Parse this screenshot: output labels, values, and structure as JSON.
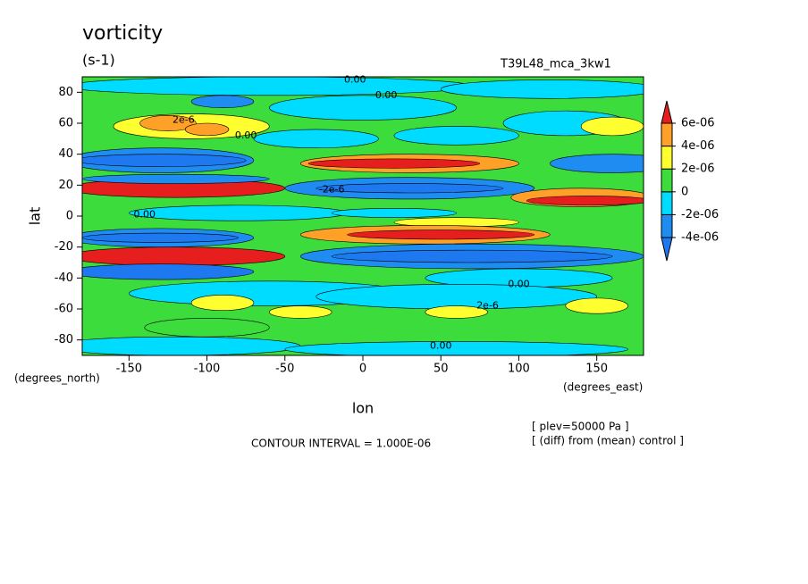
{
  "chart_data": {
    "type": "contour-map",
    "title": "vorticity",
    "units": "(s-1)",
    "dataset": "T39L48_mca_3kw1",
    "xlabel": "lon",
    "ylabel": "lat",
    "xunits": "(degrees_east)",
    "yunits": "(degrees_north)",
    "xlim": [
      -180,
      180
    ],
    "ylim": [
      -90,
      90
    ],
    "xticks": [
      -150,
      -100,
      -50,
      0,
      50,
      100,
      150
    ],
    "yticks": [
      -80,
      -60,
      -40,
      -20,
      0,
      20,
      40,
      60,
      80
    ],
    "contour_interval": "CONTOUR INTERVAL = 1.000E-06",
    "notes": [
      "[ plev=50000 Pa ]",
      "[ (diff) from (mean) control ]"
    ],
    "annotations": [
      "0.00",
      "0.00",
      "2e-6",
      "0.00",
      "-2e-6",
      "0.00",
      "2e-6",
      "0.00",
      "0.00"
    ],
    "colorbar": {
      "ticks": [
        {
          "value": -4e-06,
          "label": "-4e-06"
        },
        {
          "value": -2e-06,
          "label": "-2e-06"
        },
        0,
        {
          "value": 2e-06,
          "label": "2e-06"
        },
        {
          "value": 4e-06,
          "label": "4e-06"
        },
        {
          "value": 6e-06,
          "label": "6e-06"
        }
      ],
      "colors": [
        "#1e78f0",
        "#1e8cf0",
        "#00dcff",
        "#3cdc3c",
        "#ffff30",
        "#ffa028",
        "#e61e1e"
      ]
    }
  }
}
